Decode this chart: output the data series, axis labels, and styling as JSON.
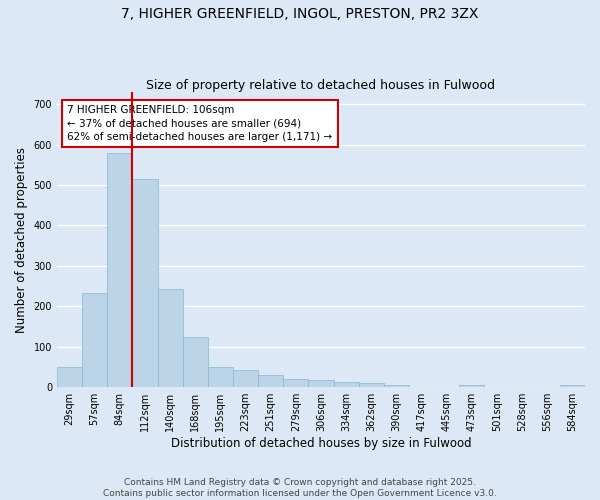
{
  "title_line1": "7, HIGHER GREENFIELD, INGOL, PRESTON, PR2 3ZX",
  "title_line2": "Size of property relative to detached houses in Fulwood",
  "xlabel": "Distribution of detached houses by size in Fulwood",
  "ylabel": "Number of detached properties",
  "footer_line1": "Contains HM Land Registry data © Crown copyright and database right 2025.",
  "footer_line2": "Contains public sector information licensed under the Open Government Licence v3.0.",
  "annotation_line1": "7 HIGHER GREENFIELD: 106sqm",
  "annotation_line2": "← 37% of detached houses are smaller (694)",
  "annotation_line3": "62% of semi-detached houses are larger (1,171) →",
  "bar_color": "#bcd4e8",
  "bar_edge_color": "#8ab4d4",
  "vline_color": "#cc0000",
  "vline_x_index": 2.5,
  "categories": [
    "29sqm",
    "57sqm",
    "84sqm",
    "112sqm",
    "140sqm",
    "168sqm",
    "195sqm",
    "223sqm",
    "251sqm",
    "279sqm",
    "306sqm",
    "334sqm",
    "362sqm",
    "390sqm",
    "417sqm",
    "445sqm",
    "473sqm",
    "501sqm",
    "528sqm",
    "556sqm",
    "584sqm"
  ],
  "values": [
    50,
    232,
    580,
    515,
    242,
    125,
    50,
    42,
    30,
    20,
    18,
    14,
    10,
    5,
    0,
    0,
    5,
    0,
    0,
    0,
    5
  ],
  "ylim": [
    0,
    730
  ],
  "yticks": [
    0,
    100,
    200,
    300,
    400,
    500,
    600,
    700
  ],
  "background_color": "#dce8f5",
  "grid_color": "#ffffff",
  "annotation_box_color": "#ffffff",
  "annotation_box_edge": "#cc0000",
  "title_fontsize": 10,
  "subtitle_fontsize": 9,
  "axis_label_fontsize": 8.5,
  "tick_fontsize": 7,
  "annotation_fontsize": 7.5,
  "footer_fontsize": 6.5
}
